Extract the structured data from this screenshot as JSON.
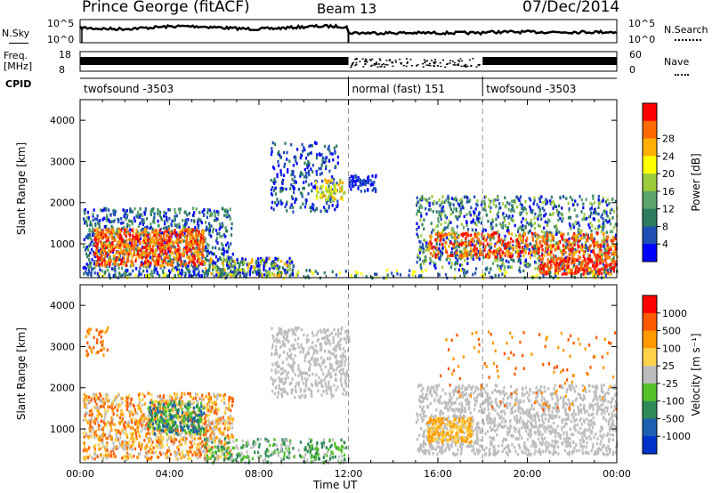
{
  "header": {
    "station": "Prince George (fitACF)",
    "beam": "Beam 13",
    "date": "07/Dec/2014"
  },
  "labels": {
    "nsky": "N.Sky",
    "nsearch": "N.Search",
    "freq_line1": "Freq.",
    "freq_line2": "[MHz]",
    "nave": "Nave",
    "cpid": "CPID",
    "nsky_ticks": [
      "10^5",
      "10^0"
    ],
    "nsearch_ticks": [
      "10^5",
      "10^0"
    ],
    "freq_ticks": [
      "18",
      "8"
    ],
    "nave_ticks": [
      "60",
      "0"
    ]
  },
  "cpid_segments": [
    {
      "label": "twofsound -3503",
      "start": 0,
      "end": 12
    },
    {
      "label": "normal (fast) 151",
      "start": 12,
      "end": 18
    },
    {
      "label": "twofsound -3503",
      "start": 18,
      "end": 24
    }
  ],
  "chart_data": [
    {
      "type": "heatmap",
      "name": "power",
      "xlabel": "Time UT",
      "ylabel": "Slant Range [km]",
      "xlim": [
        0,
        24
      ],
      "ylim": [
        180,
        4500
      ],
      "x_ticks": [
        "00:00",
        "04:00",
        "08:00",
        "12:00",
        "16:00",
        "20:00",
        "00:00"
      ],
      "y_ticks": [
        1000,
        2000,
        3000,
        4000
      ],
      "colorbar": {
        "label": "Power [dB]",
        "ticks": [
          4,
          8,
          12,
          16,
          20,
          24,
          28
        ],
        "colors": [
          "#0000ff",
          "#1f4fb5",
          "#2e7d5e",
          "#5aa36a",
          "#9ccc3c",
          "#ffff00",
          "#ffb000",
          "#ff6a00",
          "#ff0000"
        ]
      },
      "dashed_lines_hours": [
        12,
        18
      ]
    },
    {
      "type": "heatmap",
      "name": "velocity",
      "xlabel": "Time UT",
      "ylabel": "Slant Range [km]",
      "xlim": [
        0,
        24
      ],
      "ylim": [
        180,
        4500
      ],
      "x_ticks": [
        "00:00",
        "04:00",
        "08:00",
        "12:00",
        "16:00",
        "20:00",
        "00:00"
      ],
      "y_ticks": [
        1000,
        2000,
        3000,
        4000
      ],
      "colorbar": {
        "label": "Velocity [m s⁻¹]",
        "ticks": [
          1000,
          500,
          100,
          25,
          -25,
          -100,
          -500,
          -1000
        ],
        "colors": [
          "#0033cc",
          "#1d5fb0",
          "#2e8b57",
          "#55c22b",
          "#bdbdbd",
          "#ffd24a",
          "#ff9a00",
          "#ff5a00",
          "#ff0000"
        ]
      },
      "dashed_lines_hours": [
        12,
        18
      ]
    }
  ]
}
